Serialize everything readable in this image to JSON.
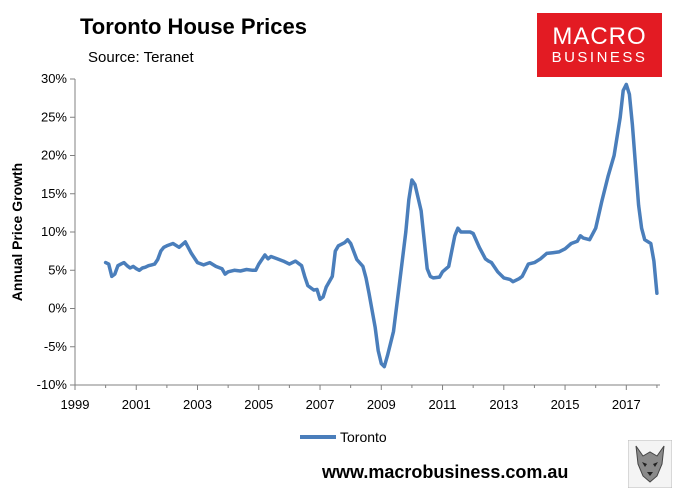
{
  "header": {
    "title": "Toronto House Prices",
    "subtitle": "Source: Teranet"
  },
  "logo": {
    "line1": "MACRO",
    "line2": "BUSINESS",
    "color": "#e31b23"
  },
  "footer": {
    "website": "www.macrobusiness.com.au"
  },
  "chart_data": {
    "type": "line",
    "ylabel": "Annual Price Growth",
    "xlabel": "",
    "xlim": [
      1999,
      2018.1
    ],
    "ylim": [
      -10,
      30
    ],
    "yticks": [
      30,
      25,
      20,
      15,
      10,
      5,
      0,
      -5,
      -10
    ],
    "ytick_labels": [
      "30%",
      "25%",
      "20%",
      "15%",
      "10%",
      "5%",
      "0%",
      "-5%",
      "-10%"
    ],
    "xticks": [
      1999,
      2001,
      2003,
      2005,
      2007,
      2009,
      2011,
      2013,
      2015,
      2017
    ],
    "xtick_labels": [
      "1999",
      "2001",
      "2003",
      "2005",
      "2007",
      "2009",
      "2011",
      "2013",
      "2015",
      "2017"
    ],
    "grid": false,
    "legend_position": "bottom",
    "series": [
      {
        "name": "Toronto",
        "color": "#4a7ebb",
        "x": [
          2000.0,
          2000.1,
          2000.2,
          2000.3,
          2000.4,
          2000.5,
          2000.6,
          2000.7,
          2000.8,
          2000.9,
          2001.0,
          2001.1,
          2001.2,
          2001.3,
          2001.4,
          2001.5,
          2001.6,
          2001.7,
          2001.8,
          2001.9,
          2002.0,
          2002.2,
          2002.4,
          2002.6,
          2002.8,
          2003.0,
          2003.2,
          2003.4,
          2003.6,
          2003.8,
          2003.9,
          2004.0,
          2004.2,
          2004.4,
          2004.6,
          2004.8,
          2004.9,
          2005.0,
          2005.2,
          2005.3,
          2005.4,
          2005.6,
          2005.8,
          2006.0,
          2006.2,
          2006.4,
          2006.5,
          2006.6,
          2006.8,
          2006.9,
          2007.0,
          2007.1,
          2007.2,
          2007.4,
          2007.5,
          2007.6,
          2007.8,
          2007.9,
          2008.0,
          2008.2,
          2008.4,
          2008.5,
          2008.6,
          2008.8,
          2008.9,
          2009.0,
          2009.1,
          2009.2,
          2009.4,
          2009.6,
          2009.8,
          2009.9,
          2010.0,
          2010.1,
          2010.3,
          2010.5,
          2010.6,
          2010.7,
          2010.9,
          2011.0,
          2011.2,
          2011.4,
          2011.5,
          2011.6,
          2011.8,
          2011.9,
          2012.0,
          2012.2,
          2012.4,
          2012.5,
          2012.6,
          2012.8,
          2013.0,
          2013.2,
          2013.3,
          2013.5,
          2013.6,
          2013.8,
          2014.0,
          2014.2,
          2014.4,
          2014.6,
          2014.8,
          2015.0,
          2015.2,
          2015.4,
          2015.5,
          2015.6,
          2015.8,
          2016.0,
          2016.2,
          2016.4,
          2016.6,
          2016.8,
          2016.9,
          2017.0,
          2017.1,
          2017.2,
          2017.4,
          2017.5,
          2017.6,
          2017.8,
          2017.9,
          2018.0
        ],
        "values": [
          6.0,
          5.8,
          4.2,
          4.5,
          5.6,
          5.8,
          6.0,
          5.6,
          5.3,
          5.5,
          5.2,
          5.0,
          5.3,
          5.4,
          5.6,
          5.7,
          5.8,
          6.4,
          7.5,
          8.0,
          8.2,
          8.5,
          8.0,
          8.7,
          7.2,
          6.0,
          5.7,
          6.0,
          5.5,
          5.2,
          4.5,
          4.8,
          5.0,
          4.9,
          5.1,
          5.0,
          5.0,
          5.8,
          7.0,
          6.5,
          6.8,
          6.5,
          6.2,
          5.8,
          6.2,
          5.6,
          4.2,
          3.0,
          2.4,
          2.5,
          1.2,
          1.5,
          2.8,
          4.2,
          7.5,
          8.2,
          8.6,
          9.0,
          8.5,
          6.4,
          5.5,
          4.0,
          2.0,
          -2.5,
          -5.5,
          -7.2,
          -7.6,
          -6.2,
          -3.0,
          3.5,
          10.0,
          14.2,
          16.8,
          16.2,
          12.8,
          5.2,
          4.2,
          4.0,
          4.1,
          4.8,
          5.5,
          9.5,
          10.5,
          10.0,
          10.0,
          10.0,
          9.8,
          8.0,
          6.5,
          6.2,
          6.0,
          4.8,
          4.0,
          3.8,
          3.5,
          3.9,
          4.2,
          5.8,
          6.0,
          6.5,
          7.2,
          7.3,
          7.4,
          7.8,
          8.5,
          8.8,
          9.5,
          9.2,
          9.0,
          10.5,
          14.0,
          17.2,
          20.0,
          25.0,
          28.5,
          29.3,
          28.0,
          24.0,
          13.5,
          10.5,
          9.0,
          8.5,
          6.2,
          2.0
        ]
      }
    ]
  }
}
